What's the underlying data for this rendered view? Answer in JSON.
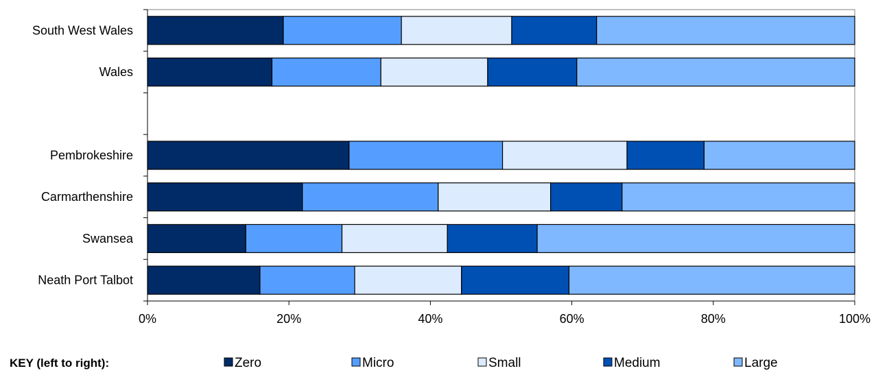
{
  "chart_data": {
    "type": "bar",
    "orientation": "horizontal",
    "stacked": "percent",
    "categories": [
      "South West Wales",
      "Wales",
      "",
      "Pembrokeshire",
      "Carmarthenshire",
      "Swansea",
      "Neath Port Talbot"
    ],
    "series": [
      {
        "name": "Zero",
        "color": "#002B66",
        "values": [
          19.2,
          17.6,
          null,
          28.5,
          21.9,
          13.9,
          15.9
        ]
      },
      {
        "name": "Micro",
        "color": "#559EFF",
        "values": [
          16.7,
          15.4,
          null,
          21.7,
          19.2,
          13.6,
          13.4
        ]
      },
      {
        "name": "Small",
        "color": "#DDEBFF",
        "values": [
          15.6,
          15.1,
          null,
          17.6,
          15.9,
          14.9,
          15.1
        ]
      },
      {
        "name": "Medium",
        "color": "#0050B4",
        "values": [
          12.0,
          12.6,
          null,
          10.9,
          10.1,
          12.7,
          15.2
        ]
      },
      {
        "name": "Large",
        "color": "#80B8FF",
        "values": [
          36.5,
          39.3,
          null,
          21.3,
          32.9,
          44.9,
          40.4
        ]
      }
    ],
    "xaxis": {
      "ticks": [
        "0%",
        "20%",
        "40%",
        "60%",
        "80%",
        "100%"
      ],
      "range": [
        0,
        100
      ]
    },
    "legend": {
      "title": "KEY (left to right):",
      "placement": "bottom"
    },
    "grid": false
  }
}
